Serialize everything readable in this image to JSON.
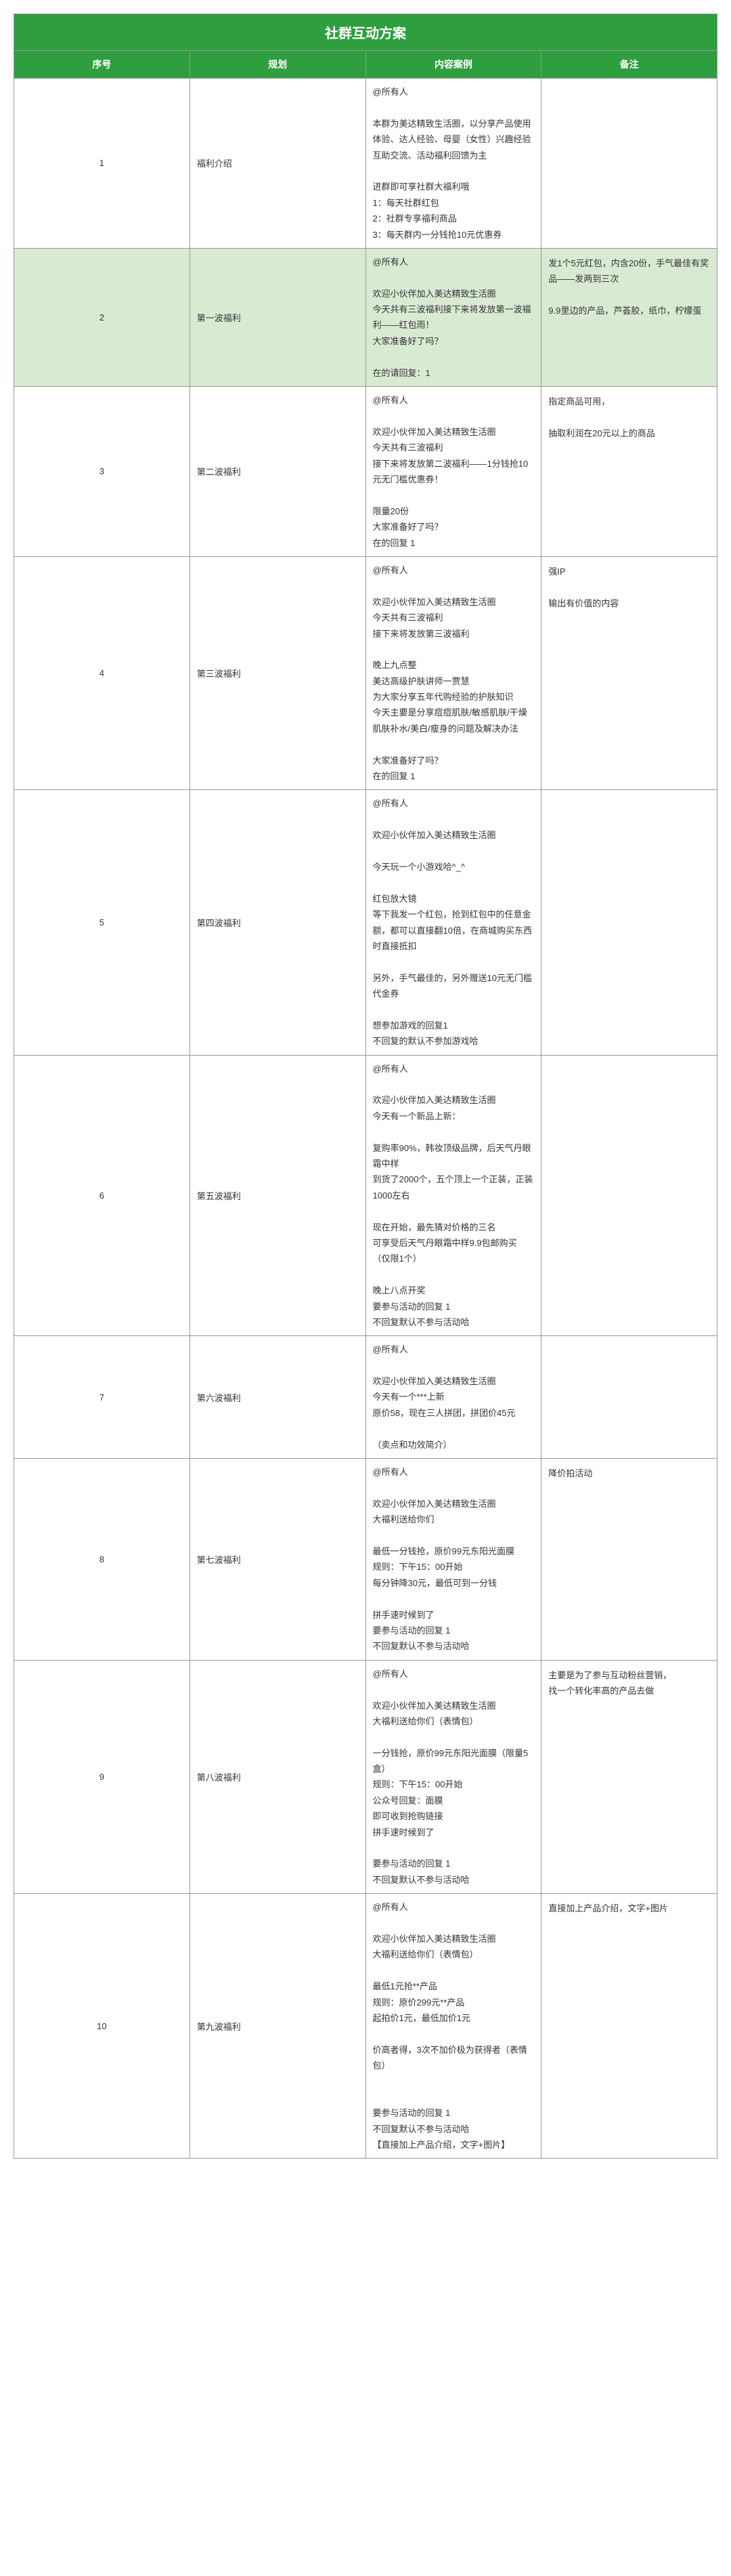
{
  "title": "社群互动方案",
  "headers": [
    "序号",
    "规划",
    "内容案例",
    "备注"
  ],
  "rows": [
    {
      "seq": "1",
      "plan": "福利介绍",
      "content": "@所有人\n\n本群为美达精致生活圈，以分享产品使用体验、达人经验、母婴（女性）兴趣经验互助交流、活动福利回馈为主\n\n进群即可享社群大福利哦\n1：每天社群红包\n2：社群专享福利商品\n3：每天群内一分钱抢10元优惠券",
      "note": ""
    },
    {
      "seq": "2",
      "plan": "第一波福利",
      "content": "@所有人\n\n欢迎小伙伴加入美达精致生活圈\n今天共有三波福利接下来将发放第一波福利——红包雨！\n大家准备好了吗？\n\n在的请回复：1",
      "note": "发1个5元红包，内含20份，手气最佳有奖品——发两到三次\n\n9.9里边的产品，芦荟胶，纸巾，柠檬蛋",
      "highlight": true
    },
    {
      "seq": "3",
      "plan": "第二波福利",
      "content": "@所有人\n\n欢迎小伙伴加入美达精致生活圈\n今天共有三波福利\n接下来将发放第二波福利——1分钱抢10元无门槛优惠券！\n\n限量20份\n大家准备好了吗？\n在的回复 1",
      "note": "指定商品可用，\n\n抽取利润在20元以上的商品"
    },
    {
      "seq": "4",
      "plan": "第三波福利",
      "content": "@所有人\n\n欢迎小伙伴加入美达精致生活圈\n今天共有三波福利\n接下来将发放第三波福利\n\n晚上九点整\n美达高级护肤讲师一贾慧\n为大家分享五年代购经验的护肤知识\n今天主要是分享痘痘肌肤/敏感肌肤/干燥肌肤补水/美白/瘦身的问题及解决办法\n\n大家准备好了吗？\n在的回复 1",
      "note": "强IP\n\n输出有价值的内容"
    },
    {
      "seq": "5",
      "plan": "第四波福利",
      "content": "@所有人\n\n欢迎小伙伴加入美达精致生活圈\n\n今天玩一个小游戏哈^_^\n\n红包放大镜\n等下我发一个红包，抢到红包中的任意金额，都可以直接翻10倍，在商城购买东西时直接抵扣\n\n另外，手气最佳的，另外赠送10元无门槛代金券\n\n想参加游戏的回复1\n不回复的默认不参加游戏哈",
      "note": ""
    },
    {
      "seq": "6",
      "plan": "第五波福利",
      "content": "@所有人\n\n欢迎小伙伴加入美达精致生活圈\n今天有一个新品上新：\n\n复购率90%，韩妆顶级品牌，后天气丹眼霜中样\n到货了2000个，五个顶上一个正装，正装1000左右\n\n现在开始，最先猜对价格的三名\n可享受后天气丹眼霜中样9.9包邮购买（仅限1个）\n\n晚上八点开奖\n要参与活动的回复 1\n不回复默认不参与活动哈",
      "note": ""
    },
    {
      "seq": "7",
      "plan": "第六波福利",
      "content": "@所有人\n\n欢迎小伙伴加入美达精致生活圈\n今天有一个***上新\n原价58，现在三人拼团，拼团价45元\n\n（卖点和功效简介）",
      "note": ""
    },
    {
      "seq": "8",
      "plan": "第七波福利",
      "content": "@所有人\n\n欢迎小伙伴加入美达精致生活圈\n大福利送给你们\n\n最低一分钱抢，原价99元东阳光面膜\n规则：下午15：00开始\n每分钟降30元，最低可到一分钱\n\n拼手速时候到了\n要参与活动的回复 1\n不回复默认不参与活动哈",
      "note": "降价拍活动"
    },
    {
      "seq": "9",
      "plan": "第八波福利",
      "content": "@所有人\n\n欢迎小伙伴加入美达精致生活圈\n大福利送给你们（表情包）\n\n一分钱抢，原价99元东阳光面膜（限量5盒）\n规则：下午15：00开始\n公众号回复：面膜\n即可收到抢购链接\n拼手速时候到了\n\n要参与活动的回复 1\n不回复默认不参与活动哈",
      "note": "主要是为了参与互动粉丝营销，\n找一个转化率高的产品去做"
    },
    {
      "seq": "10",
      "plan": "第九波福利",
      "content": "@所有人\n\n欢迎小伙伴加入美达精致生活圈\n大福利送给你们（表情包）\n\n最低1元抢**产品\n规则：原价299元**产品\n起拍价1元，最低加价1元\n\n价高者得，3次不加价极为获得者（表情包）\n\n\n要参与活动的回复 1\n不回复默认不参与活动哈\n【直接加上产品介绍，文字+图片】",
      "note": "直接加上产品介绍，文字+图片"
    }
  ]
}
